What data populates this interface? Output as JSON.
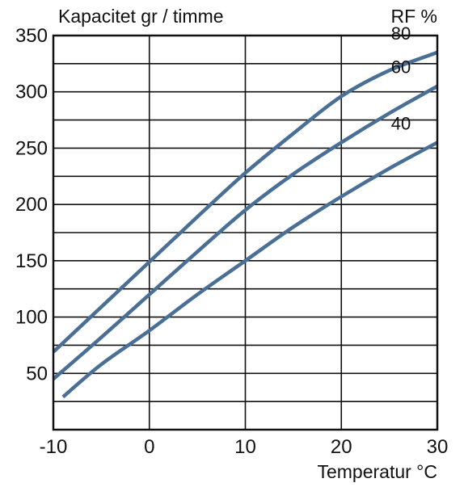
{
  "chart_data": {
    "type": "line",
    "ylabel": "Kapacitet gr / timme",
    "xlabel": "Temperatur °C",
    "legend_title": "RF %",
    "xlim": [
      -10,
      30
    ],
    "ylim": [
      0,
      350
    ],
    "x_ticks": [
      -10,
      0,
      10,
      20,
      30
    ],
    "x_tick_labels": [
      "-10",
      "0",
      "10",
      "20",
      "30"
    ],
    "y_ticks": [
      50,
      100,
      150,
      200,
      250,
      300,
      350
    ],
    "y_tick_labels": [
      "50",
      "100",
      "150",
      "200",
      "250",
      "300",
      "350"
    ],
    "grid_x": [
      -10,
      0,
      10,
      20,
      30
    ],
    "grid_y": [
      25,
      50,
      75,
      100,
      125,
      150,
      175,
      200,
      225,
      250,
      275,
      300,
      325,
      350
    ],
    "grid": true,
    "series": [
      {
        "name": "80",
        "x": [
          -10,
          -5,
          0,
          5,
          10,
          15,
          20,
          25,
          30
        ],
        "y": [
          69,
          109,
          149,
          189,
          228,
          263,
          296,
          319,
          335
        ]
      },
      {
        "name": "60",
        "x": [
          -10,
          -5,
          0,
          5,
          10,
          15,
          20,
          25,
          30
        ],
        "y": [
          45,
          82,
          120,
          158,
          195,
          227,
          255,
          281,
          305
        ]
      },
      {
        "name": "40",
        "x": [
          -9,
          -5,
          0,
          5,
          10,
          15,
          20,
          25,
          30
        ],
        "y": [
          29,
          58,
          88,
          120,
          150,
          180,
          207,
          232,
          255
        ]
      }
    ],
    "line_color": "#4a6f96"
  }
}
